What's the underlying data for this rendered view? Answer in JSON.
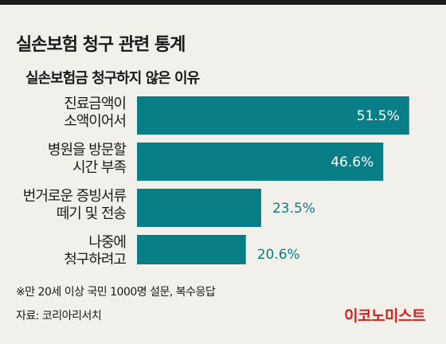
{
  "header": {
    "title": "실손보험 청구 관련 통계",
    "subtitle": "실손보험금 청구하지 않은 이유"
  },
  "colors": {
    "bar": "#0a7e86",
    "value_inside": "#ffffff",
    "value_outside": "#0a7e86",
    "brand": "#d6201e",
    "background": "#f2f0eb"
  },
  "chart_data": {
    "type": "bar",
    "orientation": "horizontal",
    "categories": [
      [
        "진료금액이",
        "소액이어서"
      ],
      [
        "병원을 방문할",
        "시간 부족"
      ],
      [
        "번거로운 증빙서류",
        "떼기 및 전송"
      ],
      [
        "나중에",
        "청구하려고"
      ]
    ],
    "values": [
      51.5,
      46.6,
      23.5,
      20.6
    ],
    "value_labels": [
      "51.5%",
      "46.6%",
      "23.5%",
      "20.6%"
    ],
    "unit": "%",
    "xlim": [
      0,
      55
    ]
  },
  "footer": {
    "note": "※만 20세 이상 국민 1000명 설문, 복수응답",
    "source": "자료: 코리아리서치",
    "brand": "이코노미스트"
  }
}
